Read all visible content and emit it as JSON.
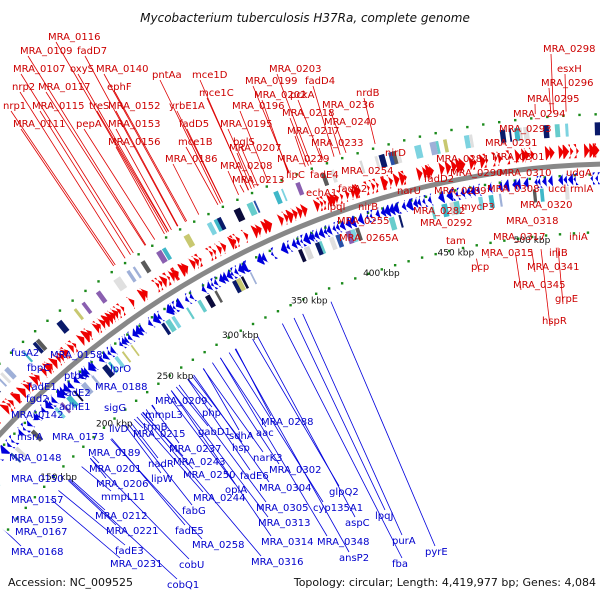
{
  "title": "Mycobacterium tuberculosis H37Ra, complete genome",
  "accession": "Accession: NC_009525",
  "summary": "Topology: circular; Length: 4,419,977 bp; Genes: 4,084",
  "colors": {
    "forward_gene": "#ee0000",
    "reverse_gene": "#0000dd",
    "label_forward": "#cc0000",
    "label_reverse": "#0000cc",
    "backbone": "#888888",
    "tick_dot": "#1a8a1a"
  },
  "ticks": [
    "150 kbp",
    "200 kbp",
    "250 kbp",
    "300 kbp",
    "350 kbp",
    "400 kbp",
    "450 kbp",
    "500 kbp"
  ],
  "forward_labels": [
    "MRA_0116",
    "MRA_0109",
    "fadD7",
    "MRA_0107",
    "oxyS",
    "MRA_0140",
    "nrp2",
    "MRA_0117",
    "ephF",
    "pntAa",
    "mce1D",
    "MRA_0199",
    "MRA_0203",
    "fadD4",
    "nrp1",
    "MRA_0115",
    "treS",
    "MRA_0152",
    "yrbE1A",
    "mce1C",
    "MRA_0196",
    "MRA_0202",
    "pckA",
    "MRA_0236",
    "nrdB",
    "MRA_0111",
    "pepA",
    "MRA_0153",
    "fadD5",
    "MRA_0195",
    "MRA_0218",
    "MRA_0240",
    "MRA_0156",
    "mce1B",
    "bglS",
    "MRA_0217",
    "MRA_0233",
    "MRA_0186",
    "MRA_0207",
    "MRA_0229",
    "MRA_0208",
    "lipC",
    "MRA_0254",
    "MRA_0213",
    "fadE4",
    "nirD",
    "echA1",
    "fadA2",
    "lpqI",
    "nirB",
    "MRA_0255",
    "MRA_0265A",
    "MRA_0298",
    "esxH",
    "MRA_0296",
    "MRA_0295",
    "MRA_0294",
    "MRA_0293",
    "MRA_0291",
    "MRA_0301",
    "MRA_0284",
    "MRA_0310",
    "udgA",
    "narU",
    "fadD2",
    "MRA_0290",
    "MRA_0308",
    "ucd",
    "rmlA",
    "MRA_0289",
    "mycP3",
    "MRA_0320",
    "MRA_0282",
    "MRA_0292",
    "MRA_0318",
    "iniA",
    "tam",
    "MRA_0317",
    "MRA_0315",
    "iniB",
    "pcp",
    "MRA_0341",
    "MRA_0345",
    "grpE",
    "hspR"
  ],
  "reverse_labels": [
    "fusA2",
    "MRA_0158",
    "fbpC",
    "ptbB",
    "lprO",
    "fadE1",
    "MRA_0188",
    "fgd2",
    "MRA_0142",
    "fadE2",
    "adhE1",
    "sigG",
    "MRA_0209",
    "mmpL3",
    "msrA",
    "MRA_0173",
    "ilvD",
    "trmB",
    "MRA_0215",
    "php",
    "gabD1",
    "MRA_0189",
    "nadR",
    "MRA_0237",
    "sdhA",
    "aac",
    "MRA_0288",
    "MRA_0148",
    "MRA_0243",
    "hsp",
    "MRA_0150",
    "MRA_0201",
    "lipW",
    "MRA_0206",
    "MRA_0250",
    "fadE6",
    "narK3",
    "MRA_0302",
    "MRA_0157",
    "mmpL11",
    "oplA",
    "MRA_0304",
    "MRA_0212",
    "fabG",
    "MRA_0244",
    "MRA_0305",
    "glpQ2",
    "MRA_0159",
    "cyp135A1",
    "MRA_0221",
    "MRA_0313",
    "aspC",
    "MRA_0167",
    "fadE3",
    "fadE5",
    "lpqJ",
    "MRA_0168",
    "MRA_0258",
    "MRA_0314",
    "MRA_0348",
    "purA",
    "MRA_0231",
    "cobU",
    "MRA_0316",
    "ansP2",
    "fba",
    "pyrE",
    "cobQ1"
  ]
}
